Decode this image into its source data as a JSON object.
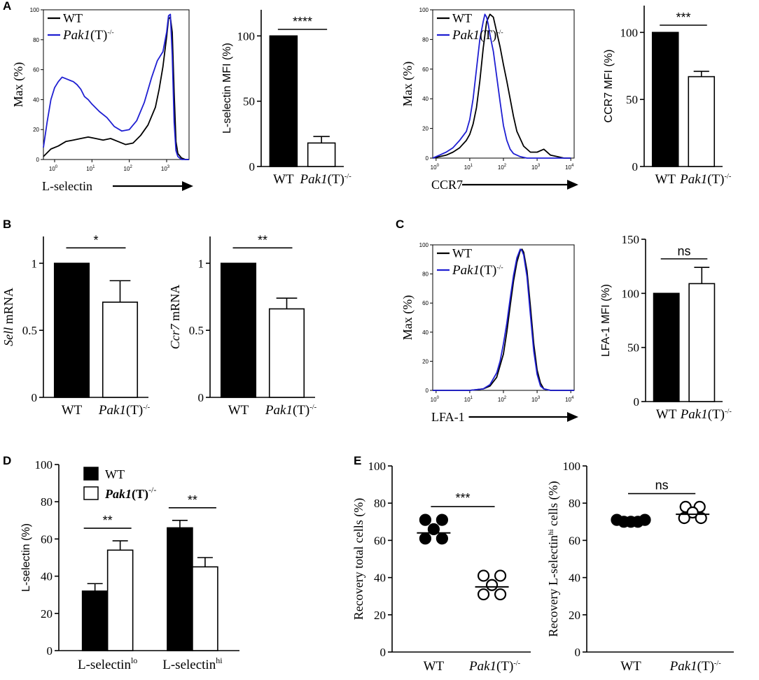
{
  "figure": {
    "panel_labels": [
      "A",
      "B",
      "C",
      "D",
      "E"
    ],
    "genotype_italic": "Pak1",
    "genotype_suffix": "(T)",
    "genotype_sup": "-/-",
    "wt": "WT"
  },
  "chart_data": [
    {
      "id": "A1",
      "type": "histogram",
      "panel": "A",
      "ylabel": "Max (%)",
      "xlabel": "L-selectin",
      "yticks": [
        0,
        20,
        40,
        60,
        80,
        100
      ],
      "xticks": [
        "10^0",
        "10^1",
        "10^2",
        "10^3"
      ],
      "xrange_log10": [
        -0.3,
        3.6
      ],
      "ylim": [
        0,
        100
      ],
      "legend": [
        "WT",
        "Pak1(T)-/-"
      ],
      "series": [
        {
          "name": "WT",
          "color": "#000000",
          "x": [
            -0.3,
            -0.1,
            0.1,
            0.3,
            0.5,
            0.7,
            0.9,
            1.1,
            1.3,
            1.5,
            1.7,
            1.9,
            2.1,
            2.3,
            2.5,
            2.7,
            2.8,
            2.9,
            3.0,
            3.05,
            3.1,
            3.15,
            3.2,
            3.25,
            3.3,
            3.4,
            3.5,
            3.6
          ],
          "y": [
            2,
            7,
            9,
            12,
            13,
            14,
            15,
            14,
            13,
            14,
            12,
            10,
            11,
            16,
            23,
            35,
            47,
            62,
            82,
            94,
            95,
            85,
            45,
            12,
            4,
            1,
            0,
            0
          ]
        },
        {
          "name": "Pak1(T)-/-",
          "color": "#1f1fd2",
          "x": [
            -0.3,
            -0.2,
            -0.1,
            0.0,
            0.1,
            0.2,
            0.3,
            0.4,
            0.5,
            0.6,
            0.7,
            0.8,
            0.9,
            1.0,
            1.2,
            1.4,
            1.6,
            1.8,
            2.0,
            2.2,
            2.4,
            2.6,
            2.75,
            2.9,
            3.0,
            3.05,
            3.1,
            3.15,
            3.2,
            3.25,
            3.3,
            3.4,
            3.5,
            3.6
          ],
          "y": [
            8,
            25,
            40,
            48,
            52,
            55,
            54,
            53,
            52,
            50,
            47,
            42,
            40,
            37,
            32,
            28,
            22,
            19,
            20,
            26,
            38,
            55,
            66,
            72,
            85,
            96,
            97,
            70,
            25,
            6,
            2,
            0,
            0,
            0
          ]
        }
      ]
    },
    {
      "id": "A2",
      "type": "bar",
      "panel": "A",
      "ylabel": "L-selectin MFI (%)",
      "categories": [
        "WT",
        "Pak1(T)-/-"
      ],
      "values": [
        100,
        18
      ],
      "errors": [
        0,
        5
      ],
      "ylim": [
        0,
        120
      ],
      "yticks": [
        0,
        50,
        100
      ],
      "fills": [
        "#000000",
        "#ffffff"
      ],
      "significance": "****"
    },
    {
      "id": "A3",
      "type": "histogram",
      "panel": "A",
      "ylabel": "Max (%)",
      "xlabel": "CCR7",
      "yticks": [
        0,
        20,
        40,
        60,
        80,
        100
      ],
      "xticks": [
        "10^0",
        "10^1",
        "10^2",
        "10^3",
        "10^4"
      ],
      "xrange_log10": [
        -0.1,
        4.1
      ],
      "ylim": [
        0,
        100
      ],
      "legend": [
        "WT",
        "Pak1(T)-/-"
      ],
      "series": [
        {
          "name": "WT",
          "color": "#000000",
          "x": [
            -0.1,
            0.1,
            0.3,
            0.5,
            0.7,
            0.9,
            1.0,
            1.1,
            1.2,
            1.3,
            1.4,
            1.5,
            1.6,
            1.7,
            1.8,
            1.9,
            2.0,
            2.1,
            2.2,
            2.3,
            2.4,
            2.6,
            2.8,
            3.0,
            3.2,
            3.4,
            3.6,
            3.8,
            4.0
          ],
          "y": [
            0,
            1,
            2,
            4,
            7,
            12,
            16,
            23,
            34,
            52,
            74,
            92,
            97,
            95,
            85,
            75,
            63,
            52,
            40,
            28,
            18,
            8,
            4,
            4,
            6,
            2,
            1,
            0,
            0
          ]
        },
        {
          "name": "Pak1(T)-/-",
          "color": "#1f1fd2",
          "x": [
            -0.1,
            0.1,
            0.3,
            0.5,
            0.7,
            0.9,
            1.0,
            1.1,
            1.2,
            1.3,
            1.4,
            1.45,
            1.5,
            1.55,
            1.6,
            1.7,
            1.8,
            1.9,
            2.0,
            2.1,
            2.2,
            2.3,
            2.5,
            2.7,
            3.0,
            3.5,
            4.0
          ],
          "y": [
            0,
            2,
            4,
            7,
            12,
            18,
            26,
            40,
            60,
            80,
            92,
            97,
            95,
            90,
            83,
            72,
            55,
            38,
            22,
            12,
            6,
            3,
            1,
            0,
            0,
            0,
            0
          ]
        }
      ]
    },
    {
      "id": "A4",
      "type": "bar",
      "panel": "A",
      "ylabel": "CCR7 MFI (%)",
      "categories": [
        "WT",
        "Pak1(T)-/-"
      ],
      "values": [
        100,
        67
      ],
      "errors": [
        0,
        4
      ],
      "ylim": [
        0,
        120
      ],
      "yticks": [
        0,
        50,
        100
      ],
      "fills": [
        "#000000",
        "#ffffff"
      ],
      "significance": "***"
    },
    {
      "id": "B1",
      "type": "bar",
      "panel": "B",
      "ylabel_italic": "Sell",
      "ylabel": "mRNA",
      "categories": [
        "WT",
        "Pak1(T)-/-"
      ],
      "values": [
        1,
        0.71
      ],
      "errors": [
        0,
        0.16
      ],
      "ylim": [
        0,
        1.2
      ],
      "yticks": [
        0,
        0.5,
        1
      ],
      "ytick_labels": [
        "0",
        "0.5",
        "1"
      ],
      "fills": [
        "#000000",
        "#ffffff"
      ],
      "significance": "*"
    },
    {
      "id": "B2",
      "type": "bar",
      "panel": "B",
      "ylabel_italic": "Ccr7",
      "ylabel": "mRNA",
      "categories": [
        "WT",
        "Pak1(T)-/-"
      ],
      "values": [
        1,
        0.66
      ],
      "errors": [
        0,
        0.08
      ],
      "ylim": [
        0,
        1.2
      ],
      "yticks": [
        0,
        0.5,
        1
      ],
      "ytick_labels": [
        "0",
        "0.5",
        "1"
      ],
      "fills": [
        "#000000",
        "#ffffff"
      ],
      "significance": "**"
    },
    {
      "id": "C1",
      "type": "histogram",
      "panel": "C",
      "ylabel": "Max (%)",
      "xlabel": "LFA-1",
      "yticks": [
        0,
        20,
        40,
        60,
        80,
        100
      ],
      "xticks": [
        "10^0",
        "10^1",
        "10^2",
        "10^3",
        "10^4"
      ],
      "xrange_log10": [
        -0.1,
        4.1
      ],
      "ylim": [
        0,
        100
      ],
      "legend": [
        "WT",
        "Pak1(T)-/-"
      ],
      "series": [
        {
          "name": "WT",
          "color": "#000000",
          "x": [
            -0.1,
            1.0,
            1.4,
            1.6,
            1.8,
            2.0,
            2.1,
            2.2,
            2.3,
            2.4,
            2.5,
            2.55,
            2.6,
            2.7,
            2.8,
            2.9,
            3.0,
            3.1,
            3.2,
            3.4,
            4.1
          ],
          "y": [
            0,
            0,
            1,
            3,
            9,
            25,
            40,
            58,
            75,
            88,
            96,
            97,
            95,
            82,
            58,
            32,
            14,
            5,
            1,
            0,
            0
          ]
        },
        {
          "name": "Pak1(T)-/-",
          "color": "#1f1fd2",
          "x": [
            -0.1,
            1.0,
            1.4,
            1.6,
            1.8,
            1.9,
            2.0,
            2.1,
            2.2,
            2.3,
            2.4,
            2.5,
            2.55,
            2.6,
            2.7,
            2.8,
            2.9,
            3.0,
            3.1,
            3.2,
            3.4,
            4.1
          ],
          "y": [
            0,
            0,
            1,
            4,
            12,
            20,
            32,
            46,
            63,
            79,
            91,
            97,
            96,
            93,
            78,
            52,
            27,
            11,
            3,
            1,
            0,
            0
          ]
        }
      ]
    },
    {
      "id": "C2",
      "type": "bar",
      "panel": "C",
      "ylabel": "LFA-1 MFI (%)",
      "categories": [
        "WT",
        "Pak1(T)-/-"
      ],
      "values": [
        100,
        109
      ],
      "errors": [
        0,
        15
      ],
      "ylim": [
        0,
        150
      ],
      "yticks": [
        0,
        50,
        100,
        150
      ],
      "fills": [
        "#000000",
        "#ffffff"
      ],
      "significance": "ns"
    },
    {
      "id": "D",
      "type": "grouped-bar",
      "panel": "D",
      "ylabel": "L-selectin (%)",
      "ylim": [
        0,
        100
      ],
      "yticks": [
        0,
        20,
        40,
        60,
        80,
        100
      ],
      "groups": [
        {
          "base": "L-selectin",
          "sup": "lo"
        },
        {
          "base": "L-selectin",
          "sup": "hi"
        }
      ],
      "legend": [
        "WT",
        "Pak1(T)-/-"
      ],
      "series": [
        {
          "name": "WT",
          "fill": "#000000",
          "values": [
            32,
            66
          ],
          "errors": [
            4,
            4
          ]
        },
        {
          "name": "Pak1(T)-/-",
          "fill": "#ffffff",
          "values": [
            54,
            45
          ],
          "errors": [
            5,
            5
          ]
        }
      ],
      "significance": [
        "**",
        "**"
      ]
    },
    {
      "id": "E1",
      "type": "scatter",
      "panel": "E",
      "ylabel": "Recovery total cells  (%)",
      "categories": [
        "WT",
        "Pak1(T)-/-"
      ],
      "ylim": [
        0,
        100
      ],
      "yticks": [
        0,
        20,
        40,
        60,
        80,
        100
      ],
      "points": [
        [
          71,
          71,
          66,
          61,
          61
        ],
        [
          41,
          41,
          36,
          31,
          31
        ]
      ],
      "means": [
        64,
        35
      ],
      "filled": [
        true,
        false
      ],
      "significance": "***"
    },
    {
      "id": "E2",
      "type": "scatter",
      "panel": "E",
      "ylabel_base": "Recovery L-selectin",
      "ylabel_sup": "hi",
      "ylabel_tail": " cells (%)",
      "categories": [
        "WT",
        "Pak1(T)-/-"
      ],
      "ylim": [
        0,
        100
      ],
      "yticks": [
        0,
        20,
        40,
        60,
        80,
        100
      ],
      "points": [
        [
          71,
          70,
          70,
          70,
          71
        ],
        [
          78,
          78,
          75,
          72,
          72
        ]
      ],
      "means": [
        70,
        74
      ],
      "filled": [
        true,
        false
      ],
      "significance": "ns"
    }
  ]
}
